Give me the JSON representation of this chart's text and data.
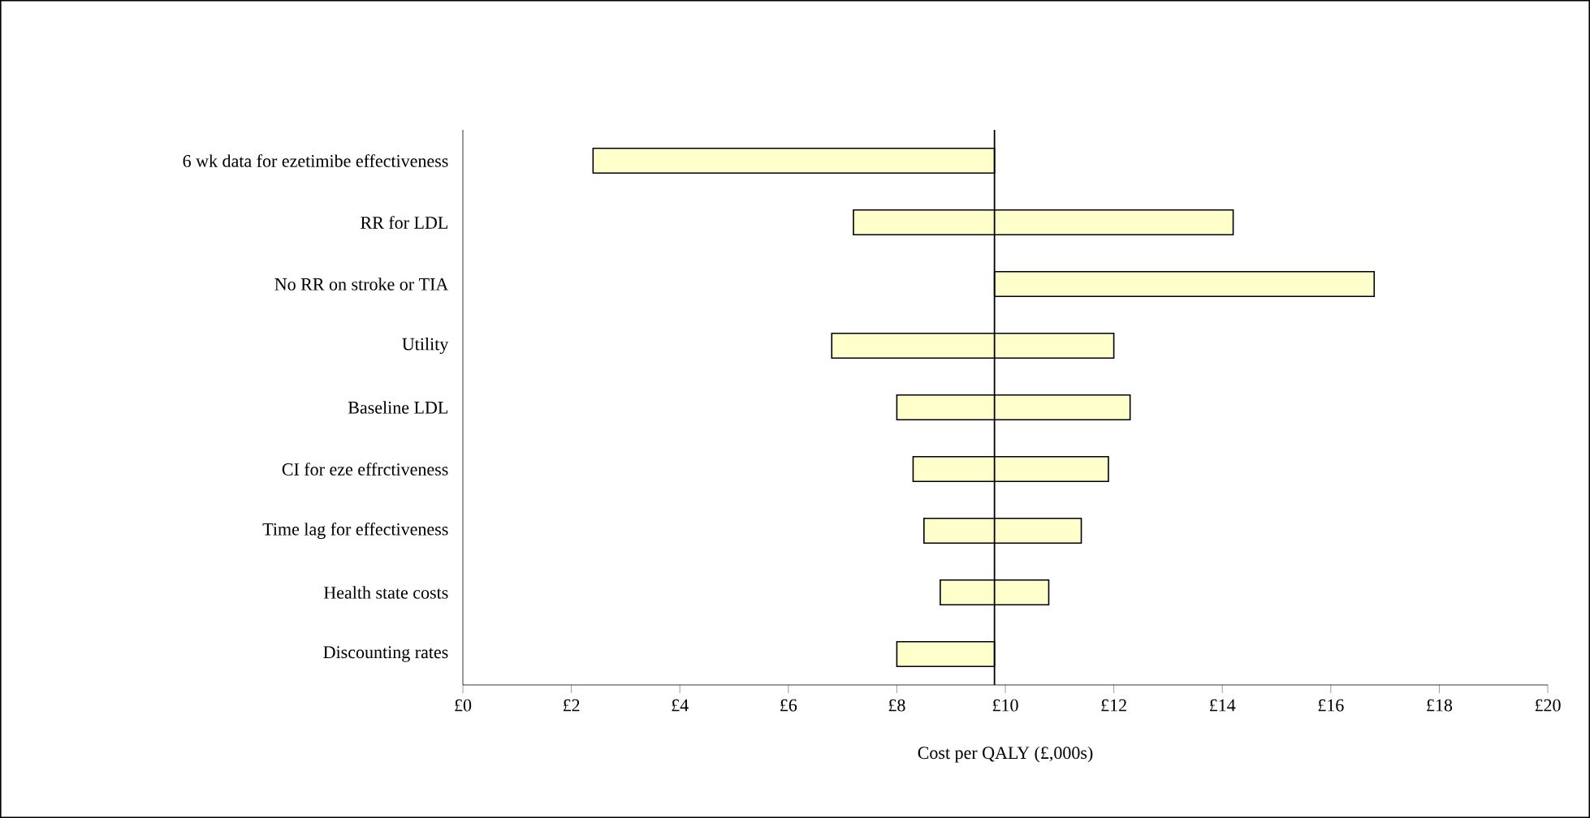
{
  "chart_data": {
    "type": "bar",
    "orientation": "horizontal",
    "xlabel": "Cost per QALY (£,000s)",
    "categories": [
      "6 wk data for ezetimibe effectiveness",
      "RR for LDL",
      "No RR on stroke or TIA",
      "Utility",
      "Baseline LDL",
      "CI for eze effrctiveness",
      "Time lag for effectiveness",
      "Health state costs",
      "Discounting rates"
    ],
    "base": [
      2.4,
      7.2,
      9.8,
      6.8,
      8.0,
      8.3,
      8.5,
      8.8,
      8.0
    ],
    "values": [
      7.4,
      7.0,
      7.0,
      5.2,
      4.3,
      3.6,
      2.9,
      2.0,
      1.8
    ],
    "color": "#ffffcc",
    "xlim": [
      0,
      20
    ],
    "xticks": [
      {
        "value": 0,
        "label": "£0"
      },
      {
        "value": 2,
        "label": "£2"
      },
      {
        "value": 4,
        "label": "£4"
      },
      {
        "value": 6,
        "label": "£6"
      },
      {
        "value": 8,
        "label": "£8"
      },
      {
        "value": 10,
        "label": "£10"
      },
      {
        "value": 12,
        "label": "£12"
      },
      {
        "value": 14,
        "label": "£14"
      },
      {
        "value": 16,
        "label": "£16"
      },
      {
        "value": 18,
        "label": "£18"
      },
      {
        "value": 20,
        "label": "£20"
      }
    ],
    "ref_lines": [
      {
        "axis": "x",
        "value": 9.8,
        "color": "#000000"
      }
    ]
  }
}
